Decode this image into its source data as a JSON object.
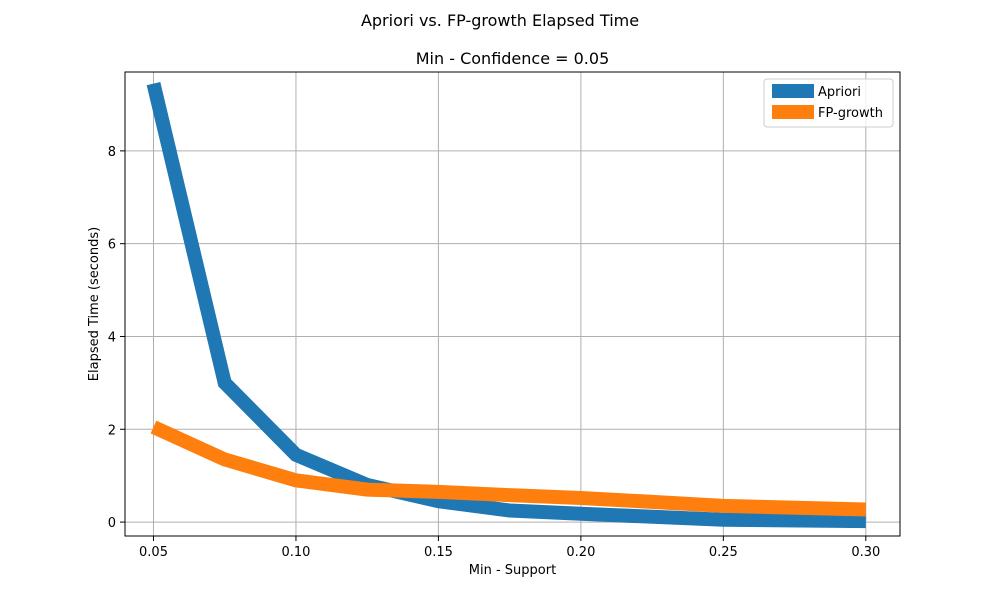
{
  "chart_data": {
    "type": "line",
    "suptitle": "Apriori vs. FP-growth Elapsed Time",
    "title": "Min - Confidence = 0.05",
    "xlabel": "Min -  Support",
    "ylabel": "Elapsed Time (seconds)",
    "xlim": [
      0.04,
      0.312
    ],
    "ylim": [
      -0.3,
      9.7
    ],
    "xticks": [
      0.05,
      0.1,
      0.15,
      0.2,
      0.25,
      0.3
    ],
    "xtick_labels": [
      "0.05",
      "0.10",
      "0.15",
      "0.20",
      "0.25",
      "0.30"
    ],
    "yticks": [
      0,
      2,
      4,
      6,
      8
    ],
    "ytick_labels": [
      "0",
      "2",
      "4",
      "6",
      "8"
    ],
    "grid": true,
    "legend_position": "top-right",
    "x": [
      0.05,
      0.075,
      0.1,
      0.125,
      0.15,
      0.175,
      0.2,
      0.25,
      0.3
    ],
    "series": [
      {
        "name": "Apriori",
        "color": "#1f77b4",
        "values": [
          9.45,
          3.0,
          1.45,
          0.8,
          0.45,
          0.25,
          0.18,
          0.05,
          0.02
        ]
      },
      {
        "name": "FP-growth",
        "color": "#ff7f0e",
        "values": [
          2.05,
          1.35,
          0.9,
          0.7,
          0.65,
          0.58,
          0.52,
          0.35,
          0.27
        ]
      }
    ]
  }
}
